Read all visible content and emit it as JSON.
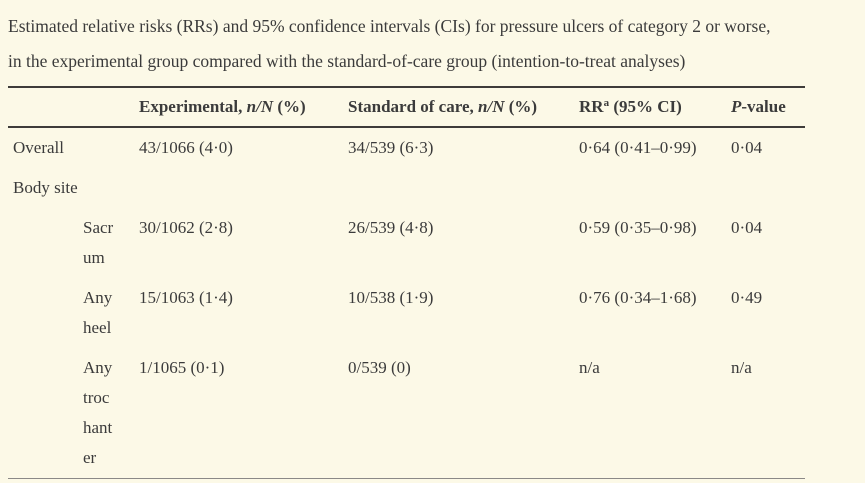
{
  "page": {
    "background_color": "#fcf9e7",
    "text_color": "#3b3b3b",
    "rule_dark_color": "#3e3c3a",
    "rule_light_color": "#8b8987"
  },
  "caption": {
    "line1": "Estimated relative risks (RRs) and 95% confidence intervals (CIs) for pressure ulcers of category 2 or worse,",
    "line2": "in the experimental group compared with the standard-of-care group (intention-to-treat analyses)"
  },
  "table": {
    "headers": {
      "rowlabel": "",
      "experimental": {
        "pre": "Experimental, ",
        "italic": "n/N",
        "post": " (%)"
      },
      "standard": {
        "pre": "Standard of care, ",
        "italic": "n/N",
        "post": " (%)"
      },
      "rr": {
        "pre": "RR",
        "sup": "a",
        "post": " (95% CI)"
      },
      "pvalue": {
        "italic": "P",
        "post": "-value"
      }
    },
    "rows": [
      {
        "main": "Overall",
        "sub": "",
        "experimental": "43/1066 (4·0)",
        "standard": "34/539 (6·3)",
        "rr": "0·64 (0·41–0·99)",
        "pvalue": "0·04"
      },
      {
        "main": "Body site",
        "sub": "",
        "experimental": "",
        "standard": "",
        "rr": "",
        "pvalue": ""
      },
      {
        "main": "",
        "sub": "Sacrum",
        "experimental": "30/1062 (2·8)",
        "standard": "26/539 (4·8)",
        "rr": "0·59 (0·35–0·98)",
        "pvalue": "0·04"
      },
      {
        "main": "",
        "sub": "Any heel",
        "experimental": "15/1063 (1·4)",
        "standard": "10/538 (1·9)",
        "rr": "0·76 (0·34–1·68)",
        "pvalue": "0·49"
      },
      {
        "main": "",
        "sub": "Any trochanter",
        "experimental": "1/1065 (0·1)",
        "standard": "0/539 (0)",
        "rr": "n/a",
        "pvalue": "n/a"
      }
    ]
  }
}
